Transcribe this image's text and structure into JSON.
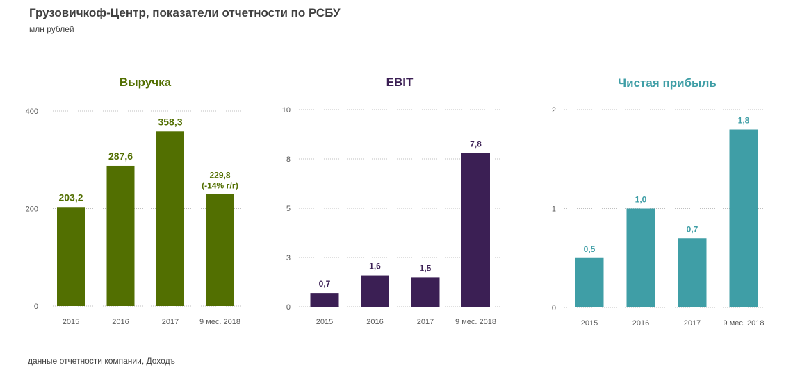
{
  "header": {
    "title": "Грузовичкоф-Центр,  показатели отчетности по РСБУ",
    "subtitle": "млн рублей"
  },
  "footer": {
    "source": "данные отчетности компании, Доходъ"
  },
  "chart_data": [
    {
      "type": "bar",
      "title": "Выручка",
      "categories": [
        "2015",
        "2016",
        "2017",
        "9 мес. 2018"
      ],
      "values": [
        203.2,
        287.6,
        358.3,
        229.8
      ],
      "labels": [
        "203,2",
        "287,6",
        "358,3",
        "229,8"
      ],
      "label_notes": [
        "",
        "",
        "",
        "(-14% г/г)"
      ],
      "yticks": [
        "0",
        "200",
        "400"
      ],
      "ytick_values": [
        0,
        200,
        400
      ],
      "ylim": [
        0,
        400
      ],
      "color": "#526f01",
      "title_color": "#526f01",
      "grid": true
    },
    {
      "type": "bar",
      "title": "EBIT",
      "categories": [
        "2015",
        "2016",
        "2017",
        "9 мес. 2018"
      ],
      "values": [
        0.7,
        1.6,
        1.5,
        7.8
      ],
      "labels": [
        "0,7",
        "1,6",
        "1,5",
        "7,8"
      ],
      "label_notes": [
        "",
        "",
        "",
        ""
      ],
      "yticks": [
        "0",
        "3",
        "5",
        "8",
        "10"
      ],
      "ytick_values": [
        0,
        2.5,
        5,
        7.5,
        10
      ],
      "ylim": [
        0,
        10
      ],
      "color": "#3b1f54",
      "title_color": "#3b1f54",
      "grid": true
    },
    {
      "type": "bar",
      "title": "Чистая прибыль",
      "categories": [
        "2015",
        "2016",
        "2017",
        "9 мес. 2018"
      ],
      "values": [
        0.5,
        1.0,
        0.7,
        1.8
      ],
      "labels": [
        "0,5",
        "1,0",
        "0,7",
        "1,8"
      ],
      "label_notes": [
        "",
        "",
        "",
        ""
      ],
      "yticks": [
        "0",
        "1",
        "2"
      ],
      "ytick_values": [
        0,
        1,
        2
      ],
      "ylim": [
        0,
        2
      ],
      "color": "#3f9ea6",
      "title_color": "#3f9ea6",
      "grid": true
    }
  ]
}
